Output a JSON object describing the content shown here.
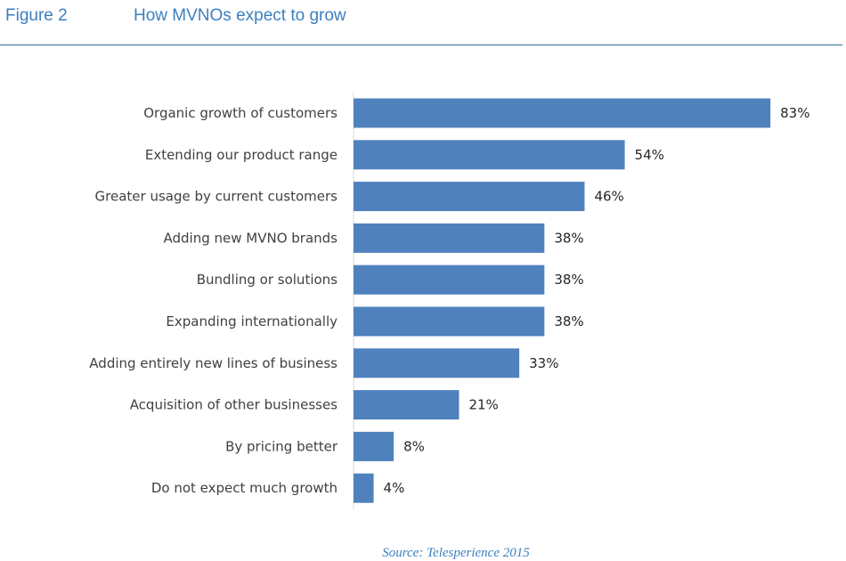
{
  "header": {
    "figure_label": "Figure 2",
    "title": "How MVNOs expect to grow"
  },
  "source": "Source: Telesperience 2015",
  "colors": {
    "bar": "#4f81bd",
    "heading": "#3d7fc0",
    "rule": "#2f6f93",
    "axis": "#d9d9d9"
  },
  "chart_data": {
    "type": "bar",
    "orientation": "horizontal",
    "categories": [
      "Organic growth of customers",
      "Extending our product range",
      "Greater usage by current customers",
      "Adding new MVNO brands",
      "Bundling or solutions",
      "Expanding internationally",
      "Adding entirely new lines of business",
      "Acquisition of other businesses",
      "By pricing better",
      "Do not expect much growth"
    ],
    "values": [
      83,
      54,
      46,
      38,
      38,
      38,
      33,
      21,
      8,
      4
    ],
    "value_labels": [
      "83%",
      "54%",
      "46%",
      "38%",
      "38%",
      "38%",
      "33%",
      "21%",
      "8%",
      "4%"
    ],
    "unit": "%",
    "xlim": [
      0,
      100
    ],
    "grid": false,
    "legend": "none"
  }
}
